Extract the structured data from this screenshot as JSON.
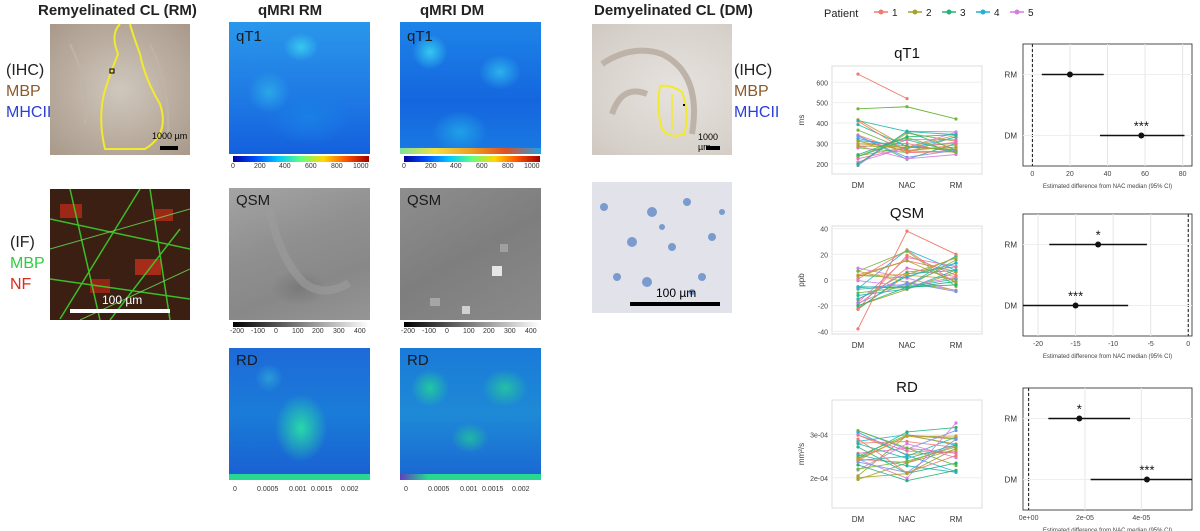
{
  "columns": {
    "rm_title": "Remyelinated CL (RM)",
    "qmri_rm_title": "qMRI RM",
    "qmri_dm_title": "qMRI DM",
    "dm_title": "Demyelinated CL (DM)"
  },
  "stain_labels": {
    "ihc": "(IHC)",
    "mbp": "MBP",
    "mhcii": "MHCII",
    "if": "(IF)",
    "mbp_if": "MBP",
    "nf": "NF"
  },
  "scalebars": {
    "rm_ihc": "1000 µm",
    "rm_if": "100 µm",
    "dm_ihc": "1000 µm",
    "dm_micro": "100 µm"
  },
  "maps": {
    "qt1_label": "qT1",
    "qsm_label": "QSM",
    "rd_label": "RD",
    "qt1_ticks": [
      "0",
      "200",
      "400",
      "600",
      "800",
      "1000"
    ],
    "qsm_ticks": [
      "-200",
      "-100",
      "0",
      "100",
      "200",
      "300",
      "400"
    ],
    "rd_ticks": [
      "0",
      "0.0005",
      "0.001",
      "0.0015",
      "0.002"
    ]
  },
  "legend": {
    "title": "Patient",
    "entries": [
      "1",
      "2",
      "3",
      "4",
      "5"
    ],
    "colors": [
      "#f07a6e",
      "#a5a32a",
      "#23b27a",
      "#21b0d6",
      "#d67cdc"
    ]
  },
  "colors": {
    "scatter_colors": [
      "#f07a6e",
      "#c99a2e",
      "#a5a32a",
      "#6bb83a",
      "#23b27a",
      "#22b6a8",
      "#21b0d6",
      "#7a8ef0",
      "#d67cdc",
      "#e86fb5"
    ],
    "mbp_ihc": "#8b5a2b",
    "mhcii_ihc": "#2a3fd4",
    "mbp_if": "#2ecc40",
    "nf_if": "#e0271c"
  },
  "chart_data": [
    {
      "type": "line",
      "title": "qT1",
      "ylabel": "ms",
      "categories": [
        "DM",
        "NAC",
        "RM"
      ],
      "yticks": [
        "200",
        "300",
        "400",
        "500",
        "600"
      ],
      "ylim": [
        150,
        680
      ]
    },
    {
      "type": "scatter",
      "title": "",
      "xlabel": "Estimated difference from NAC median (95% CI)",
      "categories": [
        "RM",
        "DM"
      ],
      "x_ticks": [
        "0",
        "20",
        "40",
        "60",
        "80"
      ],
      "xlim": [
        -5,
        85
      ],
      "points": [
        {
          "group": "RM",
          "estimate": 20,
          "ci": [
            5,
            38
          ],
          "sig": ""
        },
        {
          "group": "DM",
          "estimate": 58,
          "ci": [
            36,
            81
          ],
          "sig": "***"
        }
      ]
    },
    {
      "type": "line",
      "title": "QSM",
      "ylabel": "ppb",
      "categories": [
        "DM",
        "NAC",
        "RM"
      ],
      "yticks": [
        "40",
        "20",
        "0",
        "-20",
        "-40"
      ],
      "ylim": [
        -42,
        42
      ]
    },
    {
      "type": "scatter",
      "title": "",
      "xlabel": "Estimated difference from NAC median (95% CI)",
      "categories": [
        "RM",
        "DM"
      ],
      "x_ticks": [
        "-20",
        "-15",
        "-10",
        "-5",
        "0"
      ],
      "xlim": [
        -22,
        0.5
      ],
      "points": [
        {
          "group": "RM",
          "estimate": -12,
          "ci": [
            -18.5,
            -5.5
          ],
          "sig": "*"
        },
        {
          "group": "DM",
          "estimate": -15,
          "ci": [
            -22,
            -8
          ],
          "sig": "***"
        }
      ]
    },
    {
      "type": "line",
      "title": "RD",
      "ylabel": "mm²/s",
      "categories": [
        "DM",
        "NAC",
        "RM"
      ],
      "yticks": [
        "3e-04",
        "2e-04"
      ],
      "ylim": [
        0.00013,
        0.00038
      ]
    },
    {
      "type": "scatter",
      "title": "",
      "xlabel": "Estimated difference from NAC median (95% CI)",
      "categories": [
        "RM",
        "DM"
      ],
      "x_ticks": [
        "0e+00",
        "2e-05",
        "4e-05"
      ],
      "xlim": [
        -2e-06,
        5.8e-05
      ],
      "points": [
        {
          "group": "RM",
          "estimate": 1.8e-05,
          "ci": [
            7e-06,
            3.6e-05
          ],
          "sig": "*"
        },
        {
          "group": "DM",
          "estimate": 4.2e-05,
          "ci": [
            2.2e-05,
            5.8e-05
          ],
          "sig": "***"
        }
      ]
    }
  ]
}
